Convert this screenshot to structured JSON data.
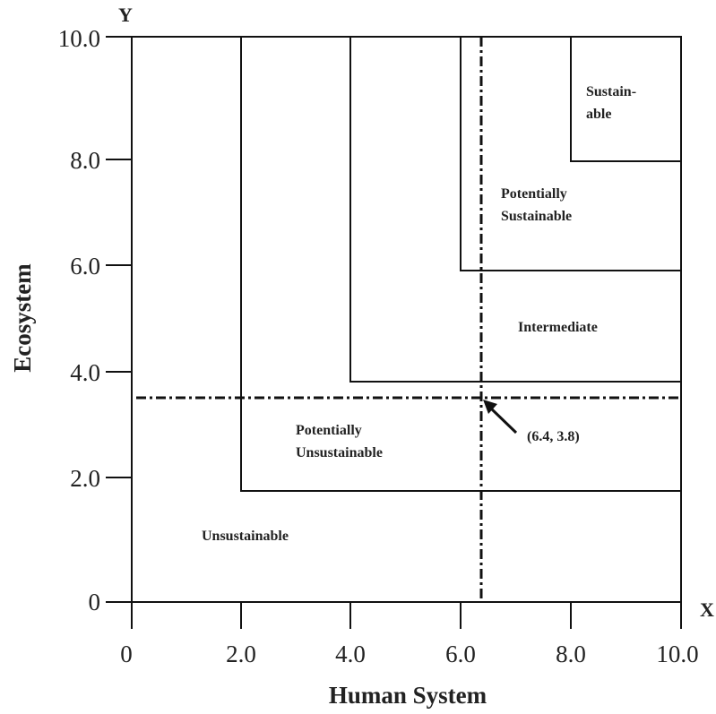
{
  "axes": {
    "x_letter": "X",
    "y_letter": "Y",
    "x_title": "Human System",
    "y_title": "Ecosystem",
    "x_ticks": [
      "0",
      "2.0",
      "4.0",
      "6.0",
      "8.0",
      "10.0"
    ],
    "y_ticks": [
      "0",
      "2.0",
      "4.0",
      "6.0",
      "8.0",
      "10.0"
    ]
  },
  "zones": {
    "sustainable": [
      "Sustain-",
      "able"
    ],
    "potentially_sustainable": [
      "Potentially",
      "Sustainable"
    ],
    "intermediate": [
      "Intermediate"
    ],
    "potentially_unsustainable": [
      "Potentially",
      "Unsustainable"
    ],
    "unsustainable": [
      "Unsustainable"
    ]
  },
  "point": {
    "label": "(6.4, 3.8)"
  }
}
